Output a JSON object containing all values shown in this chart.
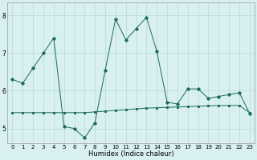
{
  "xlabel": "Humidex (Indice chaleur)",
  "x": [
    0,
    1,
    2,
    3,
    4,
    5,
    6,
    7,
    8,
    9,
    10,
    11,
    12,
    13,
    14,
    15,
    16,
    17,
    18,
    19,
    20,
    21,
    22,
    23
  ],
  "line1": [
    6.3,
    6.2,
    6.6,
    7.0,
    7.4,
    5.05,
    5.0,
    4.75,
    5.15,
    6.55,
    7.9,
    7.35,
    7.65,
    7.95,
    7.05,
    5.7,
    5.65,
    6.05,
    6.05,
    5.8,
    5.85,
    5.9,
    5.95,
    5.4
  ],
  "line2": [
    5.42,
    5.42,
    5.42,
    5.42,
    5.42,
    5.42,
    5.42,
    5.42,
    5.44,
    5.46,
    5.48,
    5.5,
    5.52,
    5.54,
    5.55,
    5.56,
    5.57,
    5.58,
    5.59,
    5.6,
    5.61,
    5.61,
    5.61,
    5.42
  ],
  "line_color": "#1a6b5a",
  "bg_color": "#d8f0f0",
  "grid_color": "#b8d8d8",
  "ylim": [
    4.6,
    8.35
  ],
  "yticks": [
    5,
    6,
    7,
    8
  ],
  "tick_fontsize": 5.0,
  "label_fontsize": 6.0
}
